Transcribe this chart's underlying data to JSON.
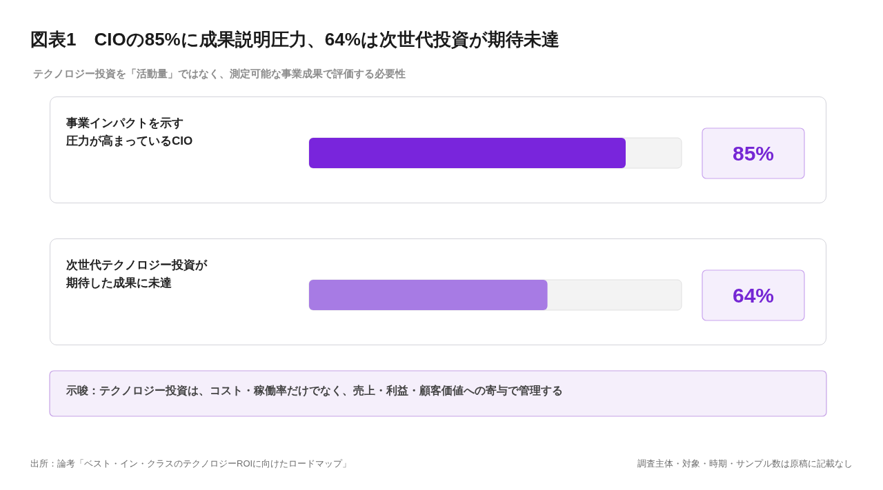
{
  "chart_data": {
    "type": "bar",
    "orientation": "horizontal",
    "title": "図表1　CIOの85%に成果説明圧力、64%は次世代投資が期待未達",
    "subtitle": "テクノロジー投資を「活動量」ではなく、測定可能な事業成果で評価する必要性",
    "categories": [
      "事業インパクトを示す圧力が高まっているCIO",
      "次世代テクノロジー投資が期待した成果に未達"
    ],
    "values": [
      85,
      64
    ],
    "colors": [
      "#7925dc",
      "#a77be4"
    ],
    "value_labels": [
      "85%",
      "64%"
    ],
    "xlim": [
      0,
      100
    ],
    "tick_labels": "y",
    "annotations": [
      "示唆：テクノロジー投資は、コスト・稼働率だけでなく、売上・利益・顧客価値への寄与で管理する",
      "出所：論考「ベスト・イン・クラスのテクノロジーROIに向けたロードマップ」",
      "調査主体・対象・時期・サンプル数は原稿に記載なし"
    ]
  }
}
